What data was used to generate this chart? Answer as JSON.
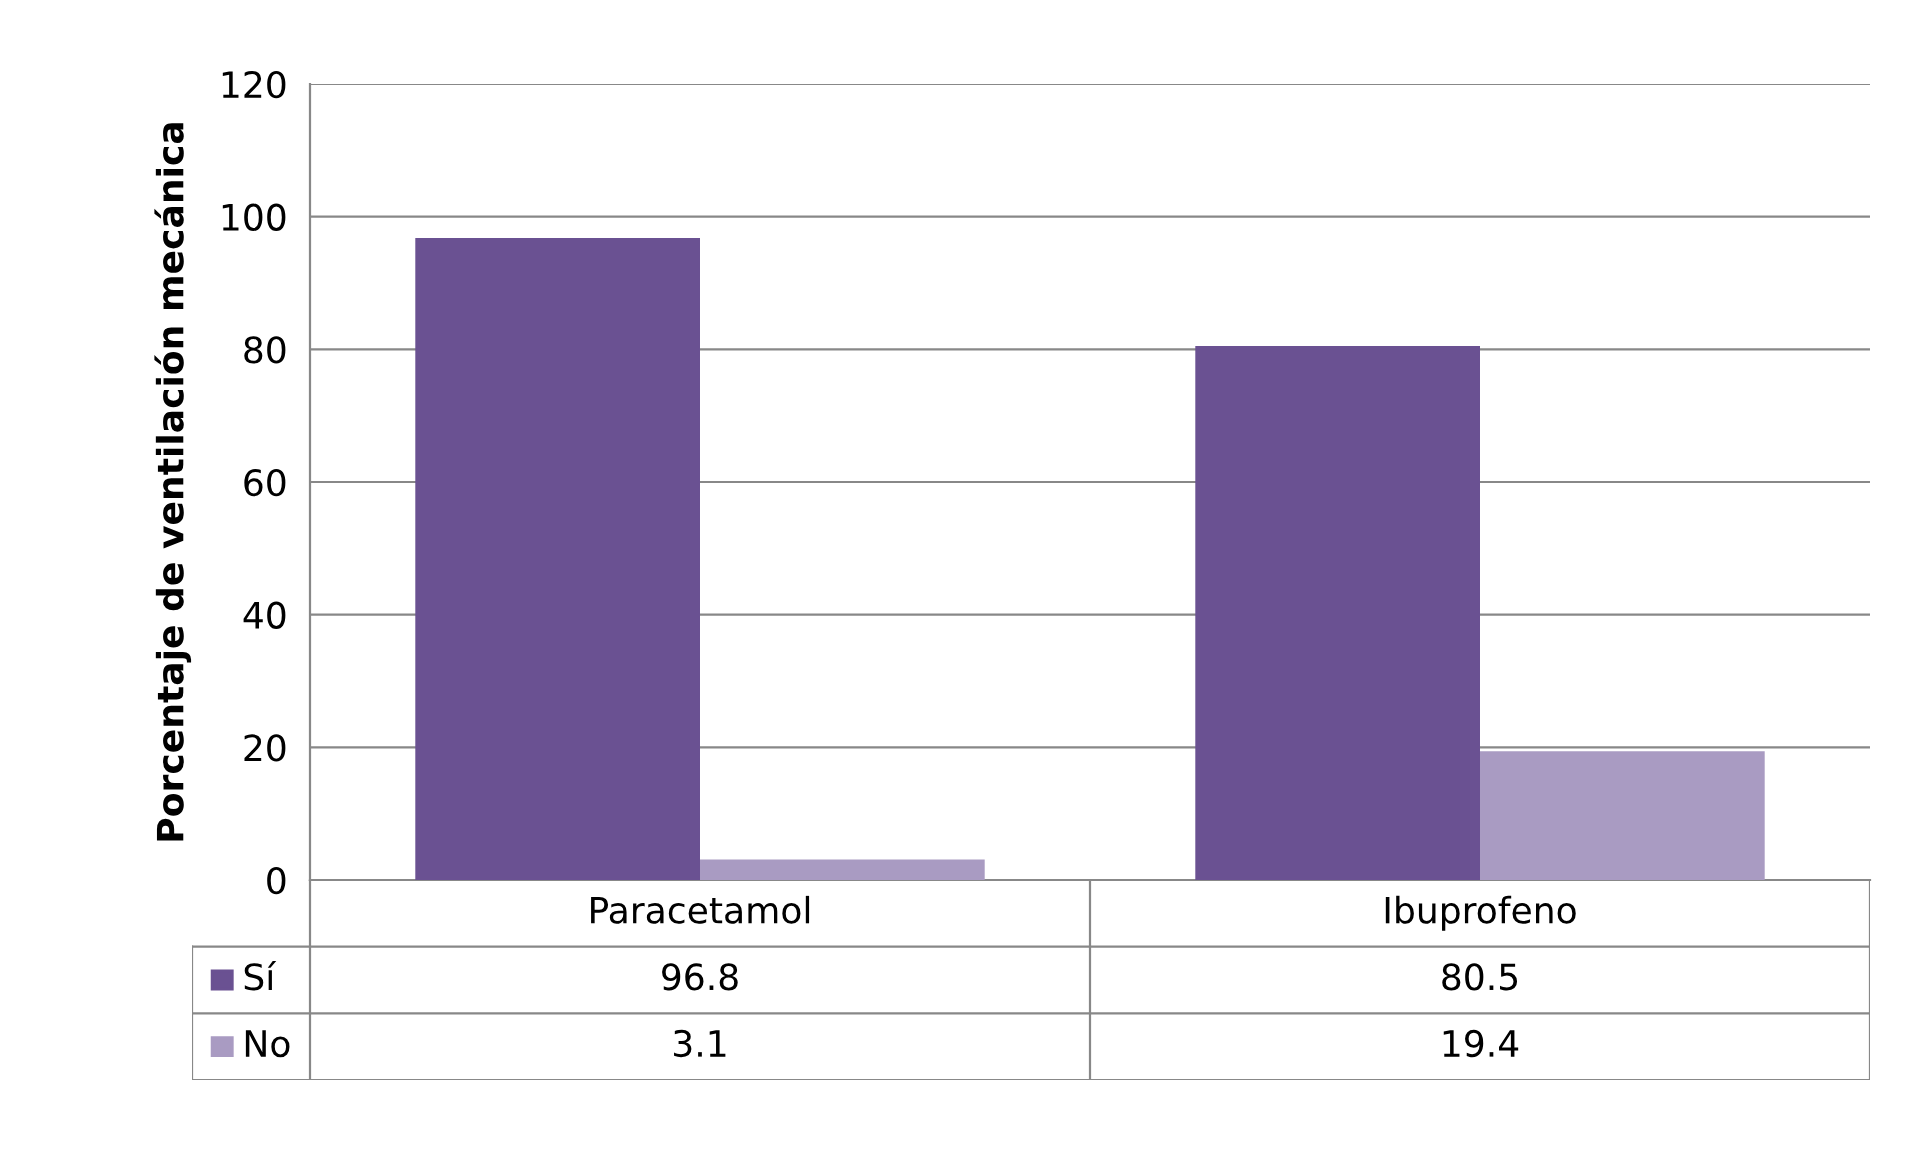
{
  "chart_data": {
    "type": "bar",
    "ylabel": "Porcentaje de ventilación mecánica",
    "categories": [
      "Paracetamol",
      "Ibuprofeno"
    ],
    "series": [
      {
        "name": "Sí",
        "color": "#6a5192",
        "values": [
          96.8,
          80.5
        ]
      },
      {
        "name": "No",
        "color": "#a99bc2",
        "values": [
          3.1,
          19.4
        ]
      }
    ],
    "ylim": [
      0,
      120
    ],
    "yticks": [
      0,
      20,
      40,
      60,
      80,
      100,
      120
    ],
    "grid": "y",
    "legend": "bottom",
    "data_labels": true
  }
}
